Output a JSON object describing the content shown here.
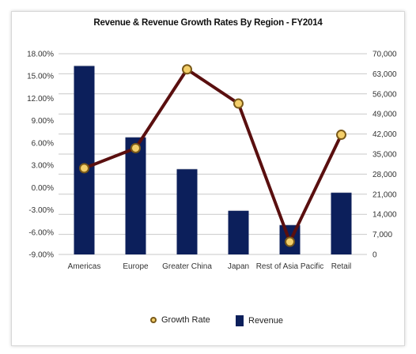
{
  "colors": {
    "bar": "#0c1f5b",
    "line": "#5a0f0f",
    "marker_fill": "#f4cf6a",
    "marker_stroke": "#7a5a1a",
    "grid": "#c9c9c9",
    "background": "#ffffff"
  },
  "chart_data": {
    "type": "bar",
    "title": "Revenue & Revenue Growth Rates By Region - FY2014",
    "categories": [
      "Americas",
      "Europe",
      "Greater China",
      "Japan",
      "Rest of Asia Pacific",
      "Retail"
    ],
    "series": [
      {
        "name": "Revenue",
        "type": "bar",
        "axis": "right",
        "values": [
          65800,
          40900,
          29800,
          15300,
          10300,
          21600
        ]
      },
      {
        "name": "Growth Rate",
        "type": "line",
        "axis": "left",
        "values": [
          2.6,
          5.3,
          15.9,
          11.3,
          -7.3,
          7.1
        ]
      }
    ],
    "y_left": {
      "ylim": [
        -9,
        18
      ],
      "ticks": [
        "18.00%",
        "15.00%",
        "12.00%",
        "9.00%",
        "6.00%",
        "3.00%",
        "0.00%",
        "-3.00%",
        "-6.00%",
        "-9.00%"
      ]
    },
    "y_right": {
      "ylim": [
        0,
        70000
      ],
      "ticks": [
        "70,000",
        "63,000",
        "56,000",
        "49,000",
        "42,000",
        "35,000",
        "28,000",
        "21,000",
        "14,000",
        "7,000",
        "0"
      ]
    },
    "grid": true,
    "legend": "bottom"
  }
}
